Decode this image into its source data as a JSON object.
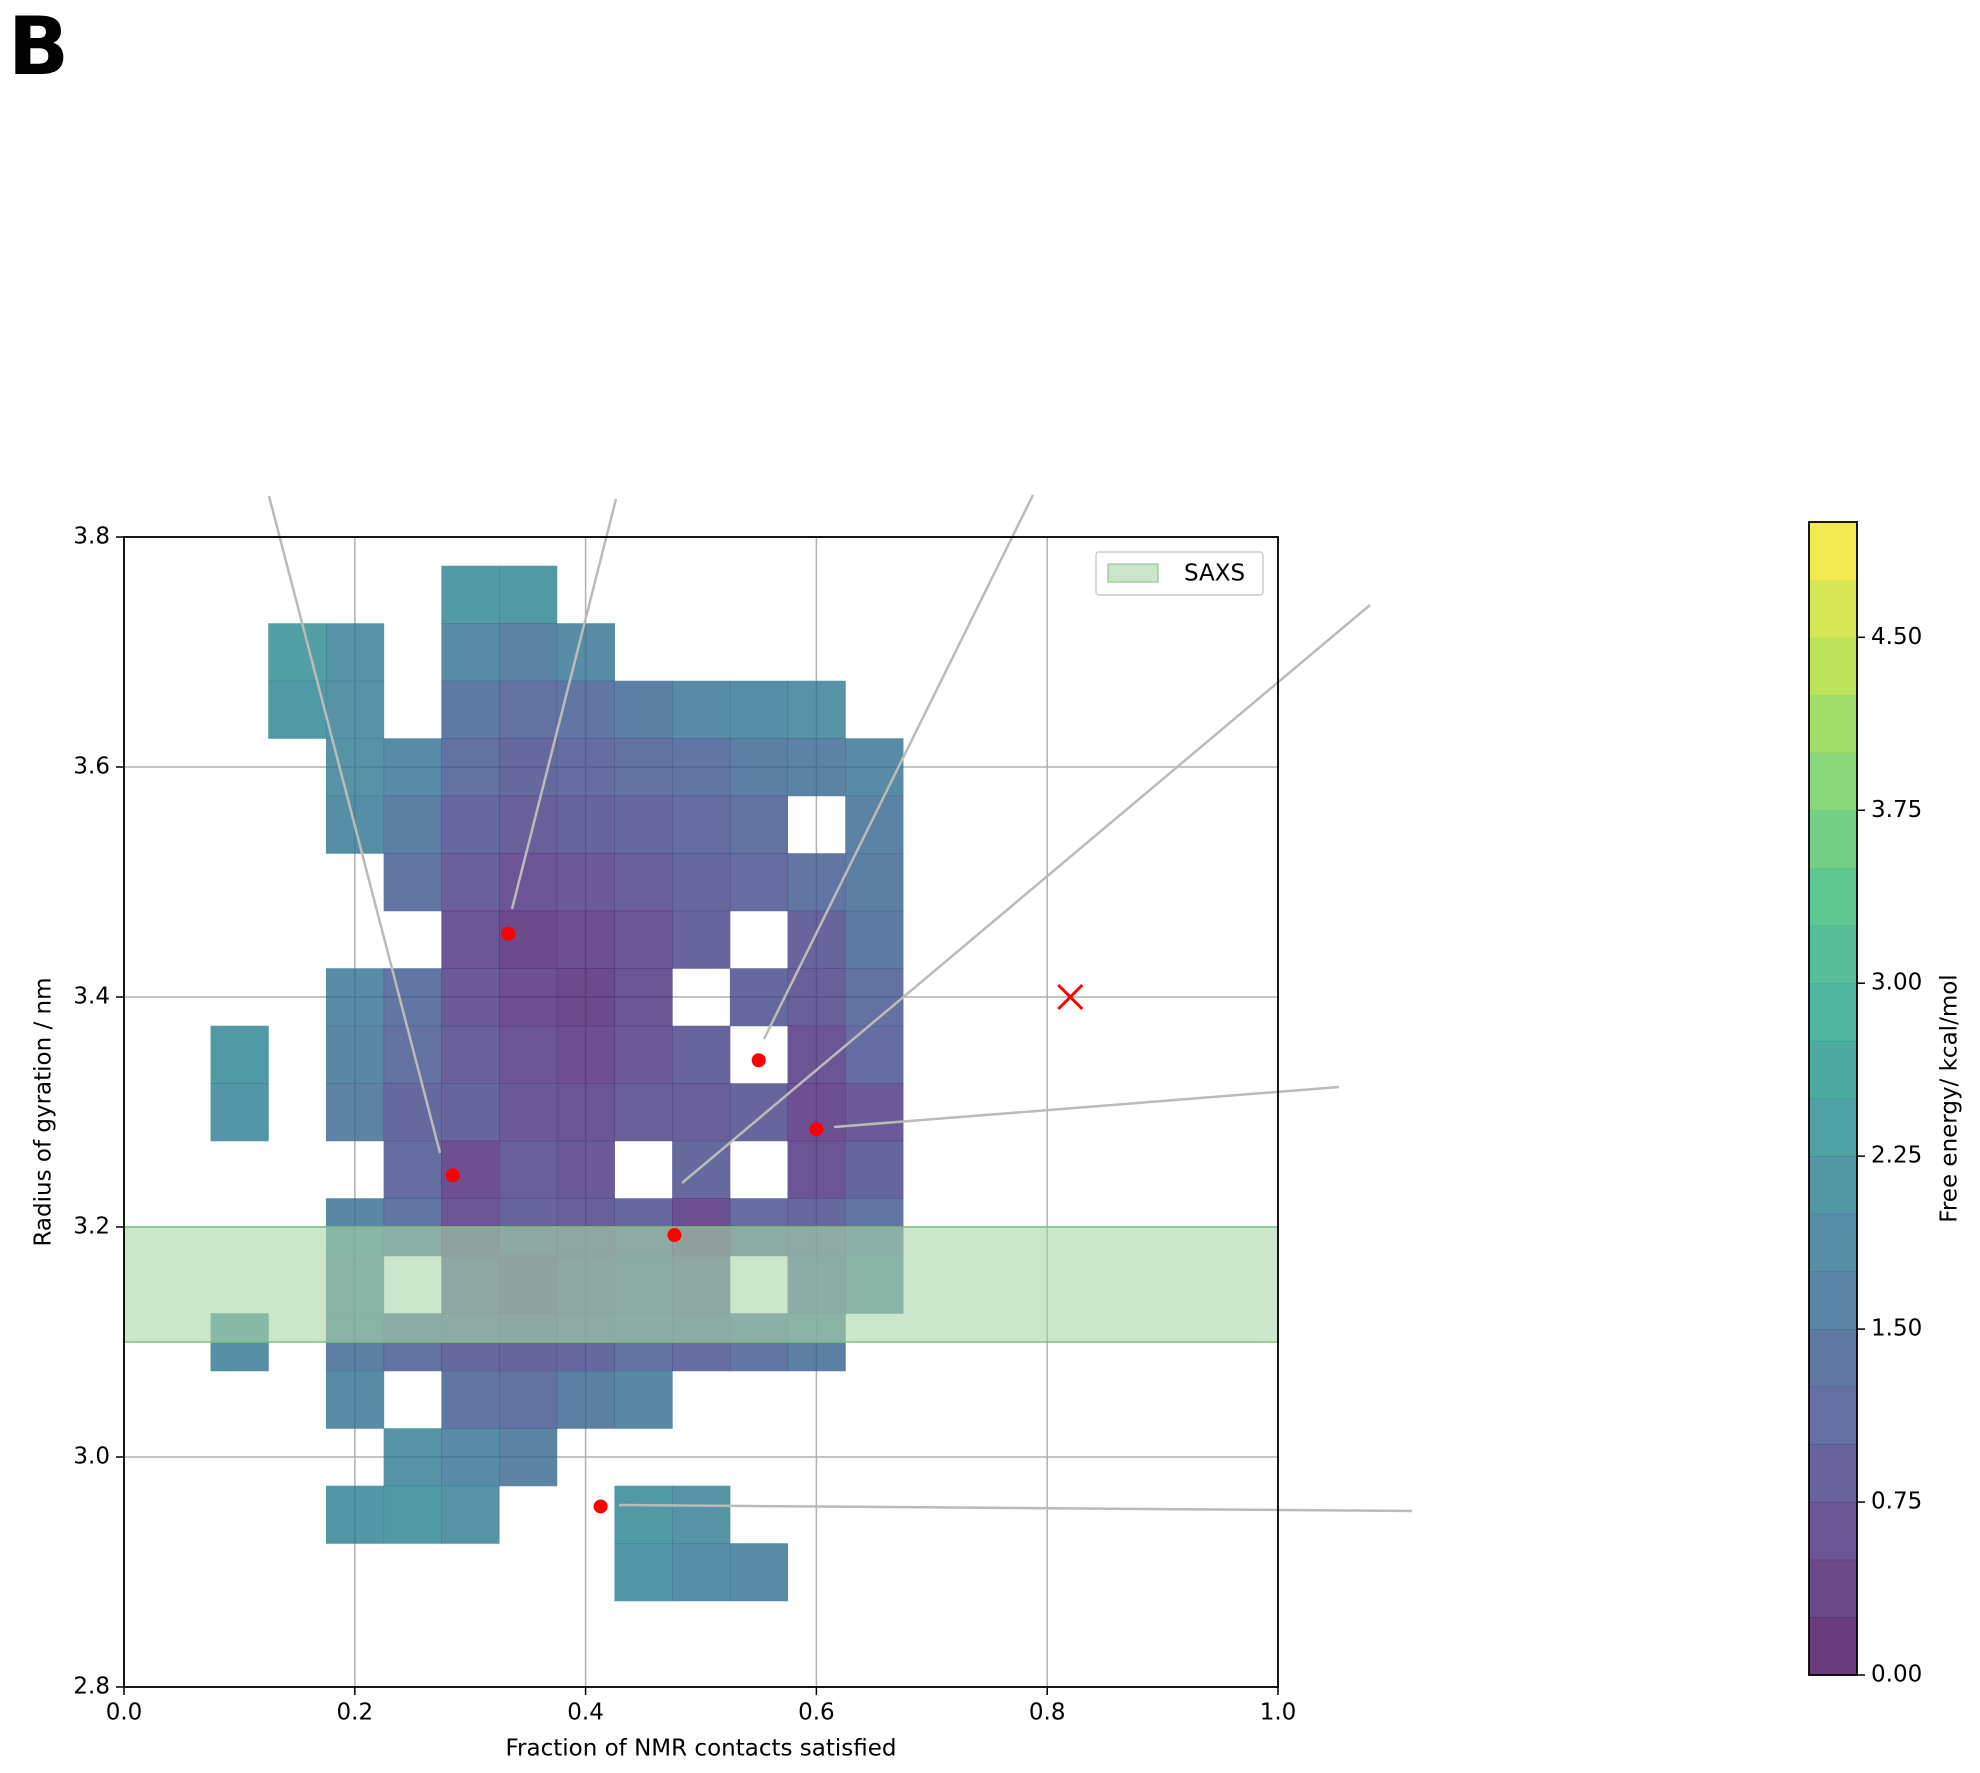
{
  "panel_label": "B",
  "chart_data": {
    "type": "heatmap",
    "x_label": "Fraction of NMR contacts satisfied",
    "y_label": "Radius of gyration / nm",
    "colorbar_label": "Free energy/ kcal/mol",
    "colormap": "viridis",
    "xlim": [
      0,
      1
    ],
    "ylim": [
      2.8,
      3.8
    ],
    "xticks": [
      {
        "value": 0,
        "label": "0.0"
      },
      {
        "value": 0.2,
        "label": "0.2"
      },
      {
        "value": 0.4,
        "label": "0.4"
      },
      {
        "value": 0.6,
        "label": "0.6"
      },
      {
        "value": 0.8,
        "label": "0.8"
      },
      {
        "value": 1,
        "label": "1.0"
      }
    ],
    "yticks": [
      2.8,
      {
        "value": 3,
        "label": "3.0"
      },
      3.2,
      3.4,
      3.6,
      3.8
    ],
    "grid": true,
    "clim": [
      0,
      5
    ],
    "cticks": [
      {
        "value": 0,
        "label": "0.00"
      },
      {
        "value": 0.75,
        "label": "0.75"
      },
      {
        "value": 1.5,
        "label": "1.50"
      },
      {
        "value": 2.25,
        "label": "2.25"
      },
      {
        "value": 3,
        "label": "3.00"
      },
      {
        "value": 3.75,
        "label": "3.75"
      },
      {
        "value": 4.5,
        "label": "4.50"
      }
    ],
    "x": [
      0.1,
      0.15,
      0.2,
      0.25,
      0.3,
      0.35,
      0.4,
      0.45,
      0.5,
      0.55,
      0.6,
      0.65,
      0.7
    ],
    "y": [
      3.75,
      3.7,
      3.65,
      3.6,
      3.55,
      3.5,
      3.45,
      3.4,
      3.35,
      3.3,
      3.25,
      3.2,
      3.15,
      3.1,
      3.05,
      3.0,
      2.95,
      2.9
    ],
    "z": [
      [
        null,
        null,
        null,
        null,
        2.2,
        2.2,
        null,
        null,
        null,
        null,
        null,
        null,
        null
      ],
      [
        null,
        2.3,
        2.0,
        null,
        1.8,
        1.6,
        1.8,
        null,
        null,
        null,
        null,
        null,
        null
      ],
      [
        null,
        2.2,
        2.0,
        null,
        1.4,
        1.2,
        1.3,
        1.5,
        1.8,
        1.9,
        2.0,
        null,
        null
      ],
      [
        null,
        null,
        2.0,
        1.8,
        1.2,
        1.0,
        1.1,
        1.2,
        1.3,
        1.5,
        1.6,
        1.8,
        null
      ],
      [
        null,
        null,
        1.9,
        1.5,
        1.0,
        0.8,
        0.9,
        1.0,
        1.1,
        1.2,
        null,
        1.6,
        null
      ],
      [
        null,
        null,
        null,
        1.3,
        0.8,
        0.6,
        0.7,
        0.8,
        1.0,
        1.1,
        1.3,
        1.5,
        null
      ],
      [
        null,
        null,
        null,
        null,
        0.6,
        0.4,
        0.5,
        0.6,
        0.9,
        null,
        0.9,
        1.4,
        null
      ],
      [
        null,
        null,
        1.8,
        1.3,
        0.7,
        0.5,
        0.4,
        0.6,
        null,
        1.0,
        0.8,
        1.2,
        null
      ],
      [
        2.2,
        null,
        1.7,
        1.2,
        0.8,
        0.6,
        0.5,
        0.7,
        0.9,
        null,
        0.6,
        1.1,
        null
      ],
      [
        2.1,
        null,
        1.6,
        1.0,
        0.9,
        0.7,
        0.6,
        0.8,
        0.8,
        0.9,
        0.5,
        0.7,
        null
      ],
      [
        null,
        null,
        null,
        1.1,
        0.5,
        0.8,
        0.7,
        null,
        1.0,
        null,
        0.6,
        0.9,
        null
      ],
      [
        null,
        null,
        1.7,
        1.3,
        0.6,
        0.9,
        0.8,
        1.0,
        0.5,
        1.1,
        1.0,
        1.3,
        null
      ],
      [
        null,
        null,
        1.6,
        null,
        0.8,
        0.7,
        0.9,
        1.1,
        0.9,
        null,
        1.2,
        1.6,
        null
      ],
      [
        1.9,
        null,
        1.5,
        1.2,
        1.0,
        0.9,
        1.0,
        1.2,
        1.1,
        1.3,
        1.5,
        null,
        null
      ],
      [
        null,
        null,
        1.8,
        null,
        1.3,
        1.2,
        1.5,
        1.7,
        null,
        null,
        null,
        null,
        null
      ],
      [
        null,
        null,
        null,
        2.0,
        1.8,
        1.6,
        null,
        null,
        null,
        null,
        null,
        null,
        null
      ],
      [
        null,
        null,
        2.1,
        2.2,
        2.0,
        null,
        null,
        2.2,
        2.0,
        null,
        null,
        null,
        null
      ],
      [
        null,
        null,
        null,
        null,
        null,
        null,
        null,
        2.1,
        1.9,
        1.8,
        null,
        null,
        null
      ]
    ],
    "band": {
      "name": "SAXS",
      "range": [
        3.1,
        3.2
      ],
      "color": "#a8d5a8"
    },
    "legend": "upper right",
    "points": {
      "color": "#ff0000",
      "x": [
        0.285,
        0.333,
        0.55,
        0.6,
        0.477,
        0.413
      ],
      "y": [
        3.245,
        3.455,
        3.345,
        3.285,
        3.193,
        2.957
      ]
    },
    "target": {
      "color": "#ff0000",
      "x": 0.82,
      "y": 3.4
    }
  }
}
